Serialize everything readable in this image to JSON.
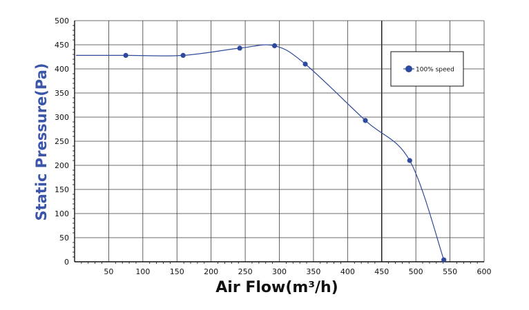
{
  "chart_data": {
    "type": "line",
    "title": "",
    "xlabel": "Air Flow(m³/h)",
    "ylabel": "Static Pressure(Pa)",
    "xlim": [
      0,
      600
    ],
    "ylim": [
      0,
      500
    ],
    "x_ticks": [
      50,
      100,
      150,
      200,
      250,
      300,
      350,
      400,
      450,
      500,
      550,
      600
    ],
    "y_ticks": [
      0,
      50,
      100,
      150,
      200,
      250,
      300,
      350,
      400,
      450,
      500
    ],
    "grid": true,
    "legend_position": "top-right",
    "series": [
      {
        "name": "100% speed",
        "color": "#2e4a9c",
        "x": [
          75,
          159,
          242,
          293,
          338,
          426,
          491,
          541
        ],
        "y": [
          428,
          428,
          443,
          448,
          410,
          293,
          210,
          4
        ]
      }
    ]
  }
}
